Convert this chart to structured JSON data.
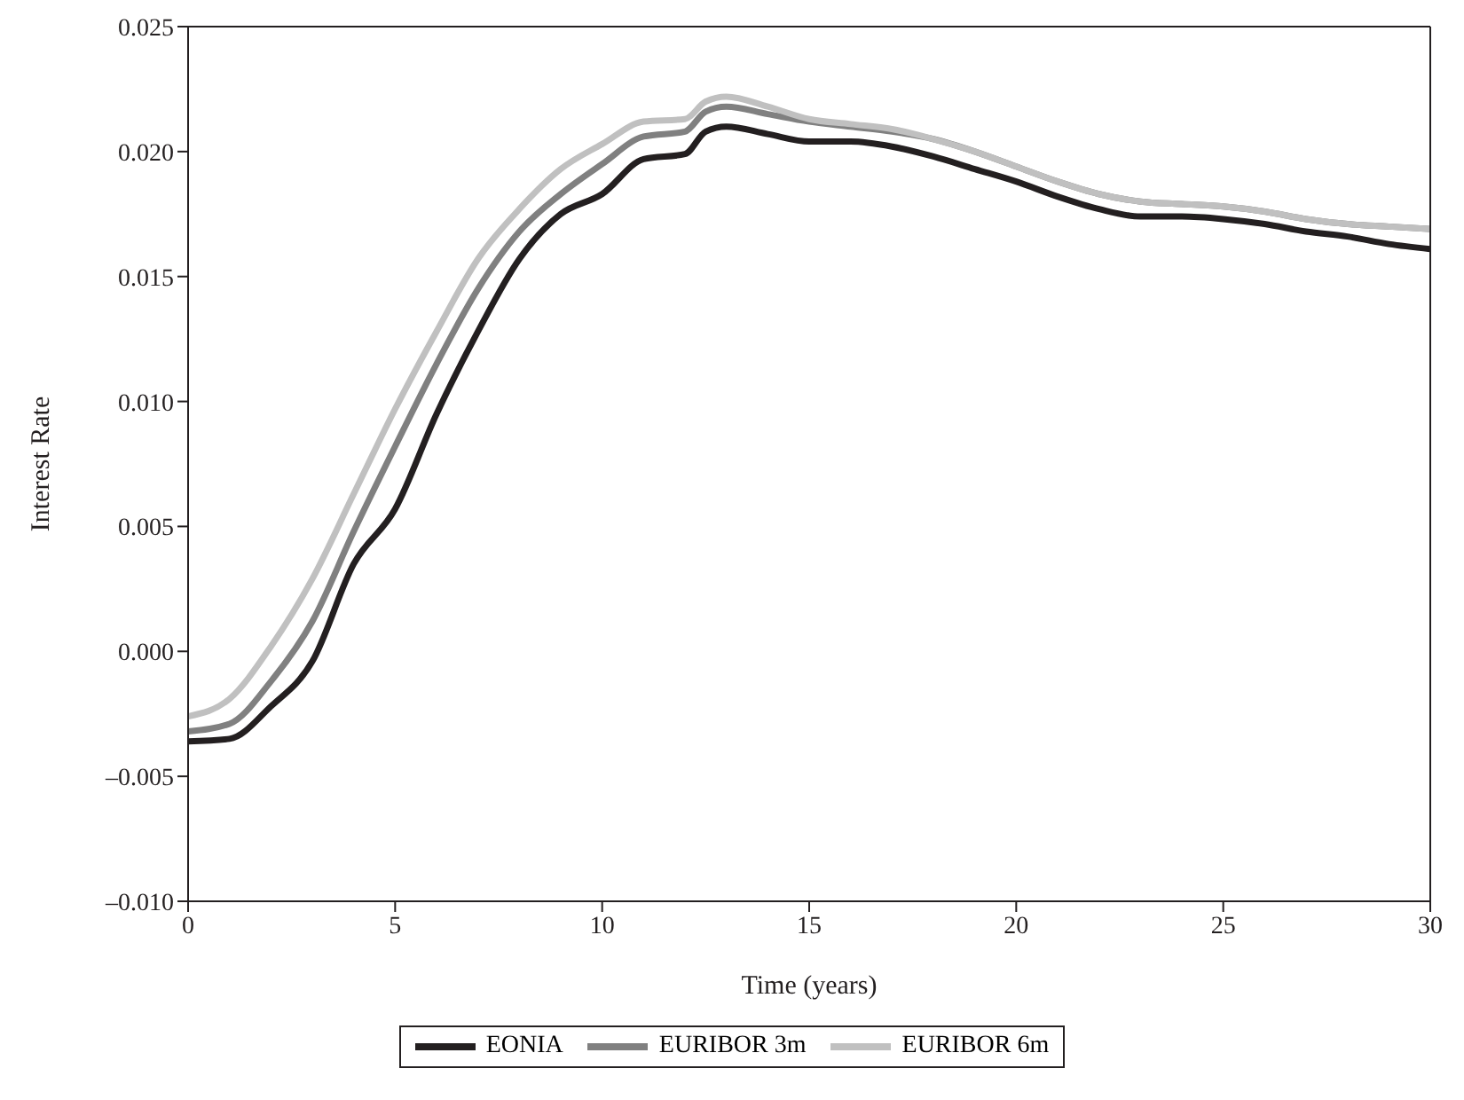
{
  "chart_data": {
    "type": "line",
    "xlabel": "Time (years)",
    "ylabel": "Interest Rate",
    "x": [
      0,
      1,
      2,
      3,
      4,
      5,
      6,
      7,
      8,
      9,
      10,
      11,
      12,
      12.5,
      13,
      14,
      15,
      16,
      17,
      18,
      19,
      20,
      21,
      22,
      23,
      24,
      25,
      26,
      27,
      28,
      29,
      30
    ],
    "series": [
      {
        "name": "EONIA",
        "color": "#231f20",
        "values": [
          -0.0036,
          -0.0035,
          -0.0022,
          -0.0004,
          0.0035,
          0.0057,
          0.0095,
          0.0128,
          0.0157,
          0.0175,
          0.0183,
          0.0197,
          0.0199,
          0.0208,
          0.021,
          0.0207,
          0.0204,
          0.0204,
          0.0202,
          0.0198,
          0.0193,
          0.0188,
          0.0182,
          0.0177,
          0.0174,
          0.0174,
          0.0173,
          0.0171,
          0.0168,
          0.0166,
          0.0163,
          0.0161
        ]
      },
      {
        "name": "EURIBOR 3m",
        "color": "#808080",
        "values": [
          -0.0032,
          -0.0029,
          -0.0012,
          0.0012,
          0.0048,
          0.0082,
          0.0115,
          0.0145,
          0.0168,
          0.0183,
          0.0195,
          0.0206,
          0.0208,
          0.0216,
          0.0218,
          0.0215,
          0.0212,
          0.021,
          0.0208,
          0.0205,
          0.02,
          0.0194,
          0.0188,
          0.0183,
          0.018,
          0.0179,
          0.0178,
          0.0176,
          0.0173,
          0.0171,
          0.017,
          0.0169
        ]
      },
      {
        "name": "EURIBOR 6m",
        "color": "#c0c0c0",
        "values": [
          -0.0026,
          -0.0019,
          0.0002,
          0.0029,
          0.0063,
          0.0097,
          0.0128,
          0.0157,
          0.0177,
          0.0193,
          0.0203,
          0.0212,
          0.0213,
          0.022,
          0.0222,
          0.0218,
          0.0213,
          0.0211,
          0.0209,
          0.0205,
          0.02,
          0.0194,
          0.0188,
          0.0183,
          0.018,
          0.0179,
          0.0178,
          0.0176,
          0.0173,
          0.0171,
          0.017,
          0.0169
        ]
      }
    ],
    "xlim": [
      0,
      30
    ],
    "xticks": [
      0,
      5,
      10,
      15,
      20,
      25,
      30
    ],
    "ylim": [
      -0.01,
      0.025
    ],
    "yticks": [
      {
        "value": -0.01,
        "label": "–0.010"
      },
      {
        "value": -0.005,
        "label": "–0.005"
      },
      {
        "value": 0,
        "label": "0.000"
      },
      {
        "value": 0.005,
        "label": "0.005"
      },
      {
        "value": 0.01,
        "label": "0.010"
      },
      {
        "value": 0.015,
        "label": "0.015"
      },
      {
        "value": 0.02,
        "label": "0.020"
      },
      {
        "value": 0.025,
        "label": "0.025"
      }
    ],
    "legend": "bottom",
    "grid": false,
    "marker": "none",
    "line_style": "solid"
  }
}
